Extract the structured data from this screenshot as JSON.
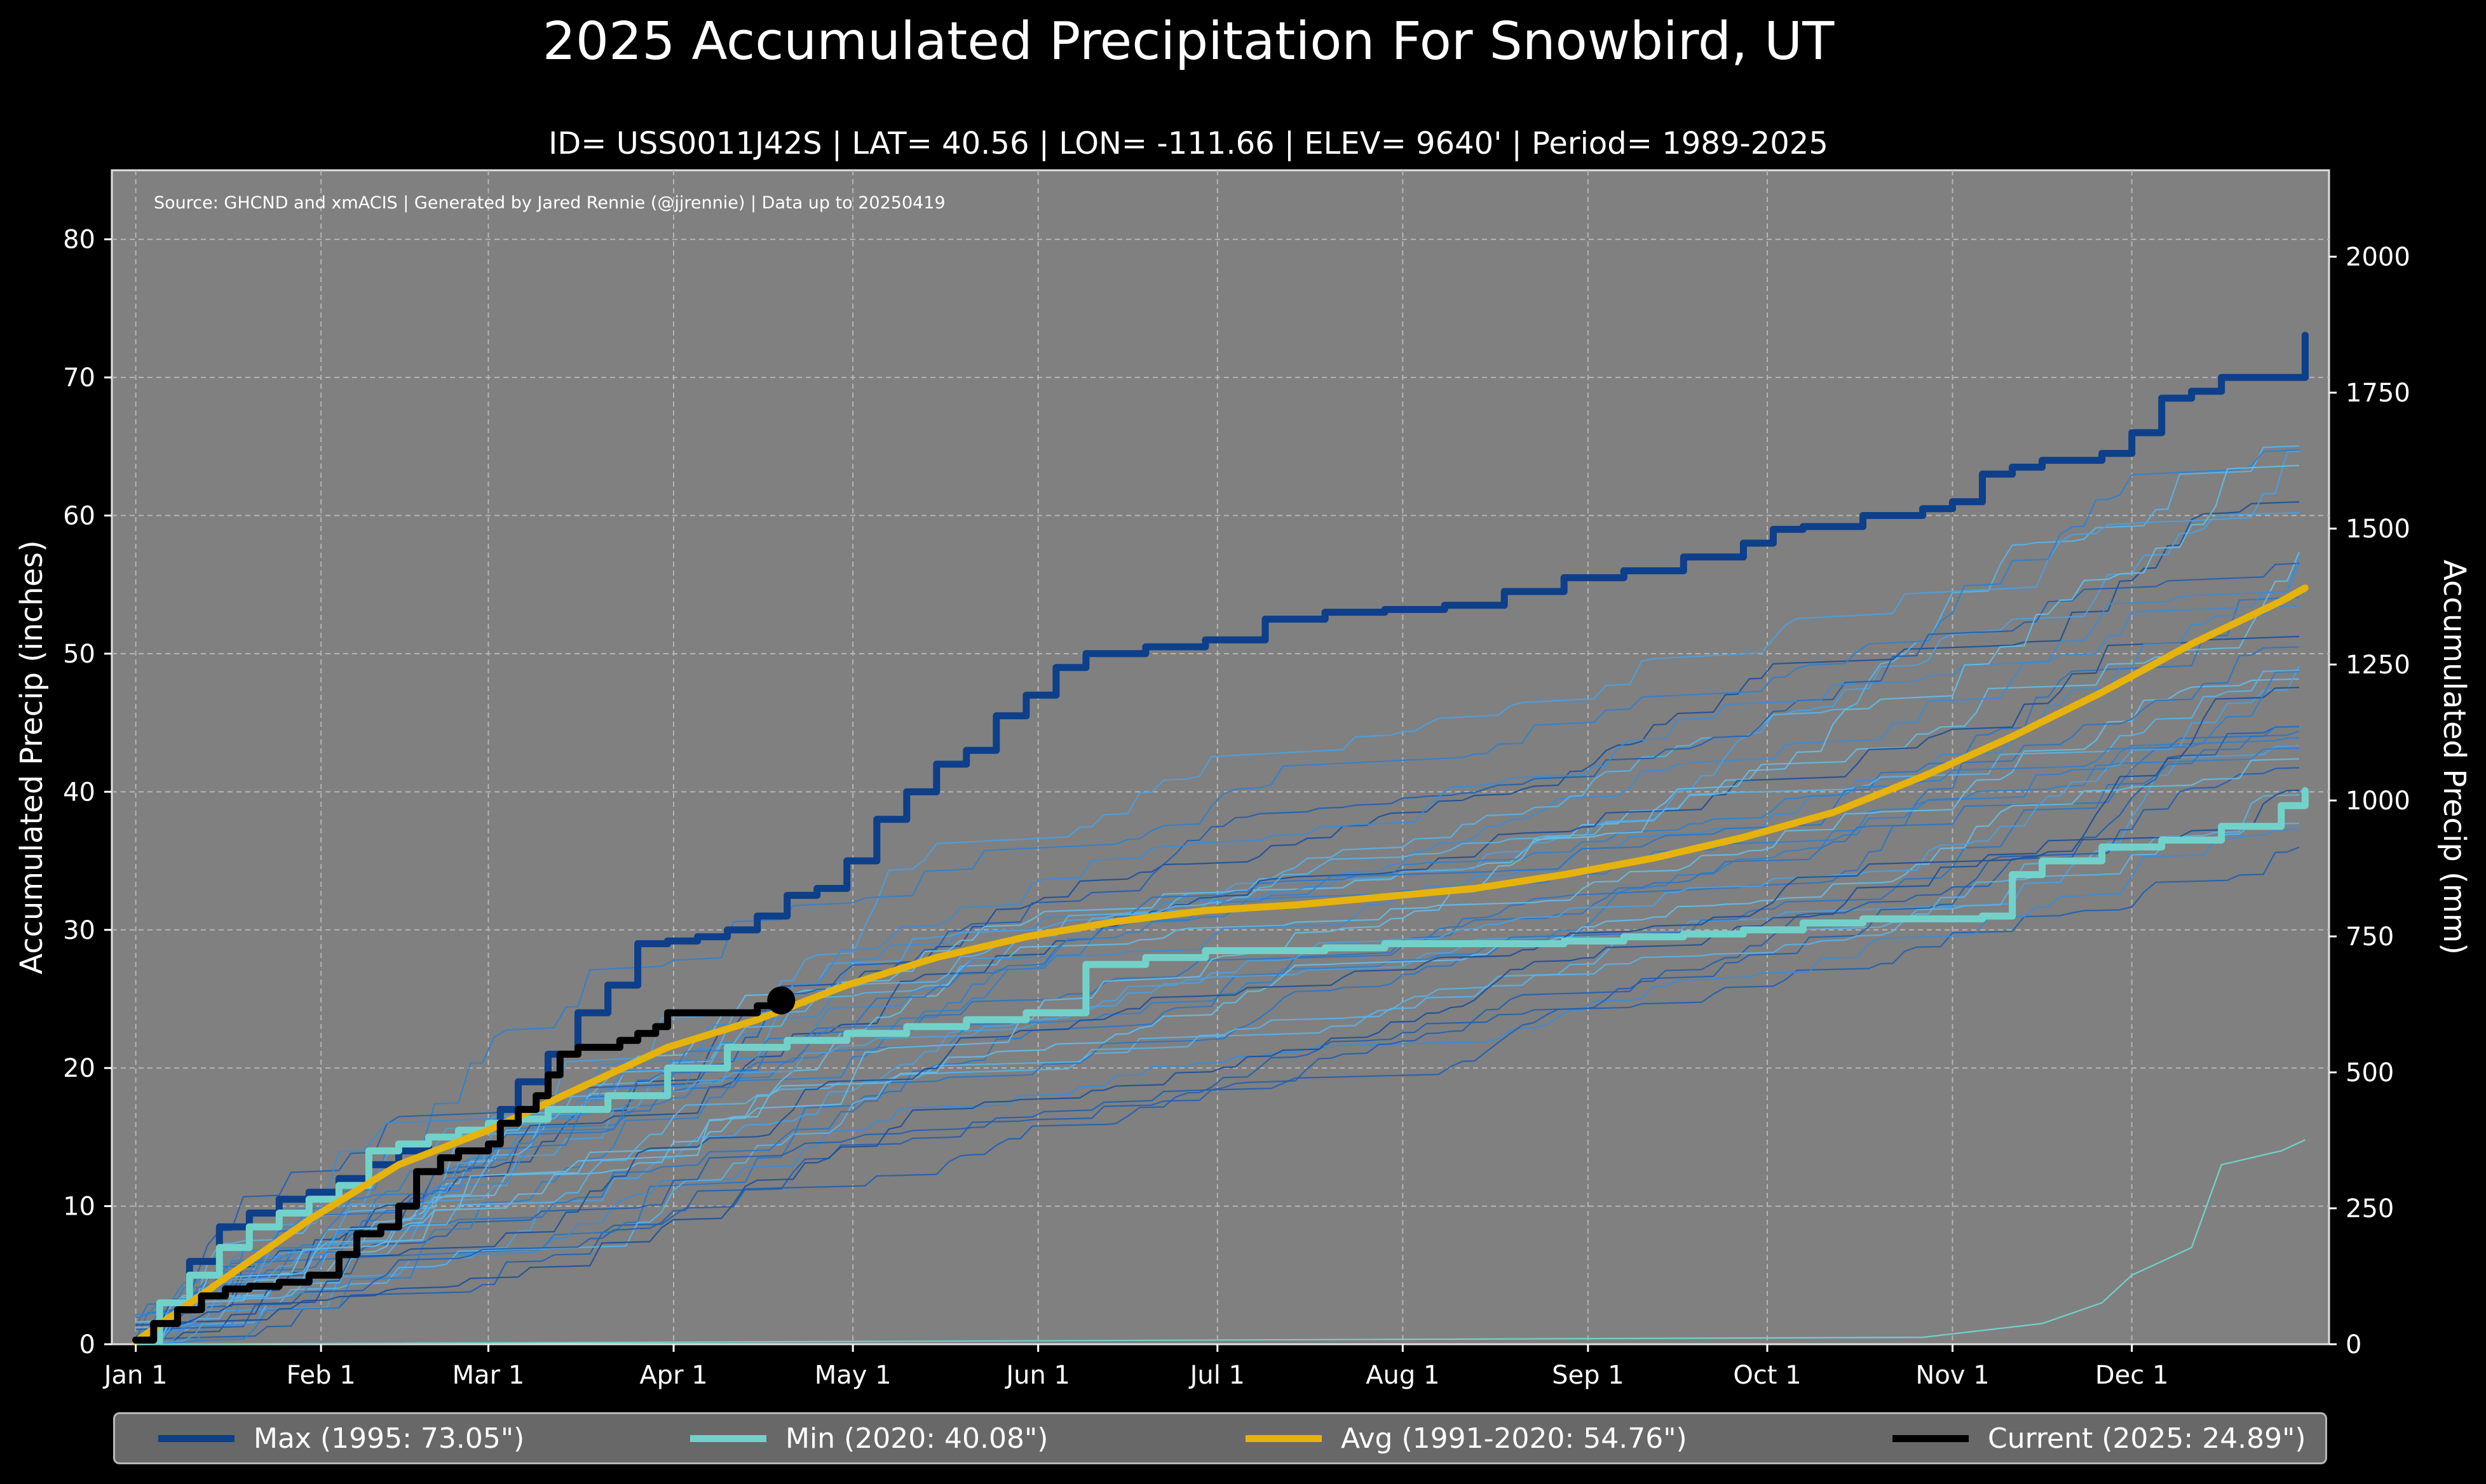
{
  "page": {
    "title": "2025 Accumulated Precipitation For Snowbird, UT",
    "subtitle": "ID= USS0011J42S | LAT= 40.56 | LON= -111.66 | ELEV= 9640' | Period= 1989-2025",
    "source_note": "Source: GHCND and xmACIS | Generated by Jared Rennie (@jjrennie) | Data up to 20250419"
  },
  "chart_data": {
    "type": "line",
    "title": "2025 Accumulated Precipitation For Snowbird, UT",
    "xlabel": "",
    "ylabel": "Accumulated Precip (inches)",
    "ylabel_right": "Accumulated Precip (mm)",
    "x_unit": "day of year",
    "xlim": [
      -3,
      368
    ],
    "ylim": [
      0,
      85
    ],
    "ylim_right_mm": [
      0,
      2159
    ],
    "x_ticks": [
      {
        "day": 1,
        "label": "Jan 1"
      },
      {
        "day": 32,
        "label": "Feb 1"
      },
      {
        "day": 60,
        "label": "Mar 1"
      },
      {
        "day": 91,
        "label": "Apr 1"
      },
      {
        "day": 121,
        "label": "May 1"
      },
      {
        "day": 152,
        "label": "Jun 1"
      },
      {
        "day": 182,
        "label": "Jul 1"
      },
      {
        "day": 213,
        "label": "Aug 1"
      },
      {
        "day": 244,
        "label": "Sep 1"
      },
      {
        "day": 274,
        "label": "Oct 1"
      },
      {
        "day": 305,
        "label": "Nov 1"
      },
      {
        "day": 335,
        "label": "Dec 1"
      }
    ],
    "y_ticks_left": [
      "0",
      "10",
      "20",
      "30",
      "40",
      "50",
      "60",
      "70",
      "80"
    ],
    "y_ticks_right": [
      "0",
      "250",
      "500",
      "750",
      "1000",
      "1250",
      "1500",
      "1750",
      "2000"
    ],
    "grid": true,
    "legend_position": "bottom",
    "legend": [
      {
        "name": "Max (1995:  73.05\")",
        "color": "#0d3f8a"
      },
      {
        "name": "Min (2020:  40.08\")",
        "color": "#72d2c9"
      },
      {
        "name": "Avg (1991-2020:  54.76\")",
        "color": "#e6b30c"
      },
      {
        "name": "Current (2025:  24.89\")",
        "color": "#000000"
      }
    ],
    "series": [
      {
        "name": "Max (1995)",
        "color": "#0d3f8a",
        "width": 11,
        "step": true,
        "x": [
          1,
          5,
          10,
          15,
          20,
          25,
          30,
          35,
          40,
          45,
          50,
          55,
          60,
          62,
          65,
          70,
          75,
          80,
          85,
          90,
          95,
          100,
          105,
          110,
          115,
          120,
          125,
          130,
          135,
          140,
          145,
          150,
          155,
          160,
          170,
          180,
          190,
          200,
          210,
          220,
          230,
          240,
          250,
          260,
          270,
          275,
          280,
          290,
          300,
          305,
          310,
          315,
          320,
          330,
          335,
          340,
          345,
          350,
          355,
          360,
          364
        ],
        "y": [
          0.3,
          3,
          6,
          8.5,
          9.5,
          10.5,
          11,
          12,
          13,
          14,
          15,
          15.5,
          16,
          17,
          19,
          21,
          24,
          26,
          29,
          29.2,
          29.5,
          30,
          31,
          32.5,
          33,
          35,
          38,
          40,
          42,
          43,
          45.5,
          47,
          49,
          50,
          50.5,
          51,
          52.5,
          53,
          53.2,
          53.5,
          54.5,
          55.5,
          56,
          57,
          58,
          59,
          59.2,
          60,
          60.5,
          61,
          63,
          63.5,
          64,
          64.5,
          66,
          68.5,
          69,
          70,
          70,
          70,
          73.05
        ]
      },
      {
        "name": "Min (2020)",
        "color": "#72d2c9",
        "width": 11,
        "step": true,
        "x": [
          1,
          5,
          10,
          15,
          20,
          25,
          30,
          35,
          40,
          45,
          50,
          55,
          60,
          65,
          70,
          80,
          90,
          100,
          110,
          120,
          130,
          140,
          150,
          155,
          160,
          170,
          180,
          190,
          200,
          210,
          220,
          230,
          240,
          250,
          260,
          270,
          280,
          290,
          300,
          310,
          315,
          320,
          330,
          340,
          350,
          360,
          364
        ],
        "y": [
          0.2,
          3,
          5,
          7,
          8.5,
          9.5,
          10.5,
          11.5,
          14,
          14.5,
          15,
          15.5,
          16,
          16.3,
          17,
          18,
          20,
          21.5,
          22,
          22.5,
          23,
          23.5,
          24,
          24,
          27.5,
          28,
          28.5,
          28.5,
          28.7,
          29,
          29,
          29,
          29.2,
          29.5,
          29.7,
          30,
          30.5,
          30.8,
          30.8,
          31,
          34,
          35,
          36,
          36.5,
          37.5,
          39,
          40.08
        ]
      },
      {
        "name": "Avg (1991-2020)",
        "color": "#e6b30c",
        "width": 11,
        "step": false,
        "x": [
          1,
          15,
          30,
          45,
          60,
          75,
          90,
          105,
          120,
          135,
          150,
          165,
          180,
          195,
          210,
          225,
          240,
          255,
          270,
          285,
          300,
          315,
          330,
          345,
          360,
          364
        ],
        "y": [
          0.2,
          4.5,
          9,
          13,
          15.5,
          18.5,
          21.5,
          23.5,
          26,
          28,
          29.5,
          30.6,
          31.4,
          31.8,
          32.4,
          33,
          34,
          35.2,
          36.7,
          38.5,
          41.1,
          44,
          47.2,
          50.7,
          53.8,
          54.76
        ]
      },
      {
        "name": "Current (2025)",
        "color": "#000000",
        "width": 11,
        "step": true,
        "x": [
          1,
          4,
          8,
          12,
          16,
          20,
          25,
          30,
          35,
          38,
          42,
          45,
          48,
          52,
          55,
          60,
          62,
          65,
          68,
          70,
          72,
          75,
          78,
          82,
          85,
          88,
          90,
          92,
          95,
          100,
          105,
          109
        ],
        "y": [
          0.3,
          1.5,
          2.5,
          3.5,
          4,
          4.2,
          4.5,
          5,
          6.5,
          8,
          8.5,
          10,
          12.5,
          13.5,
          14,
          14.5,
          16,
          17,
          18,
          19.5,
          21,
          21.5,
          21.5,
          22,
          22.5,
          23,
          24,
          24,
          24,
          24,
          24.5,
          24.89
        ],
        "marker_last": true
      }
    ]
  }
}
